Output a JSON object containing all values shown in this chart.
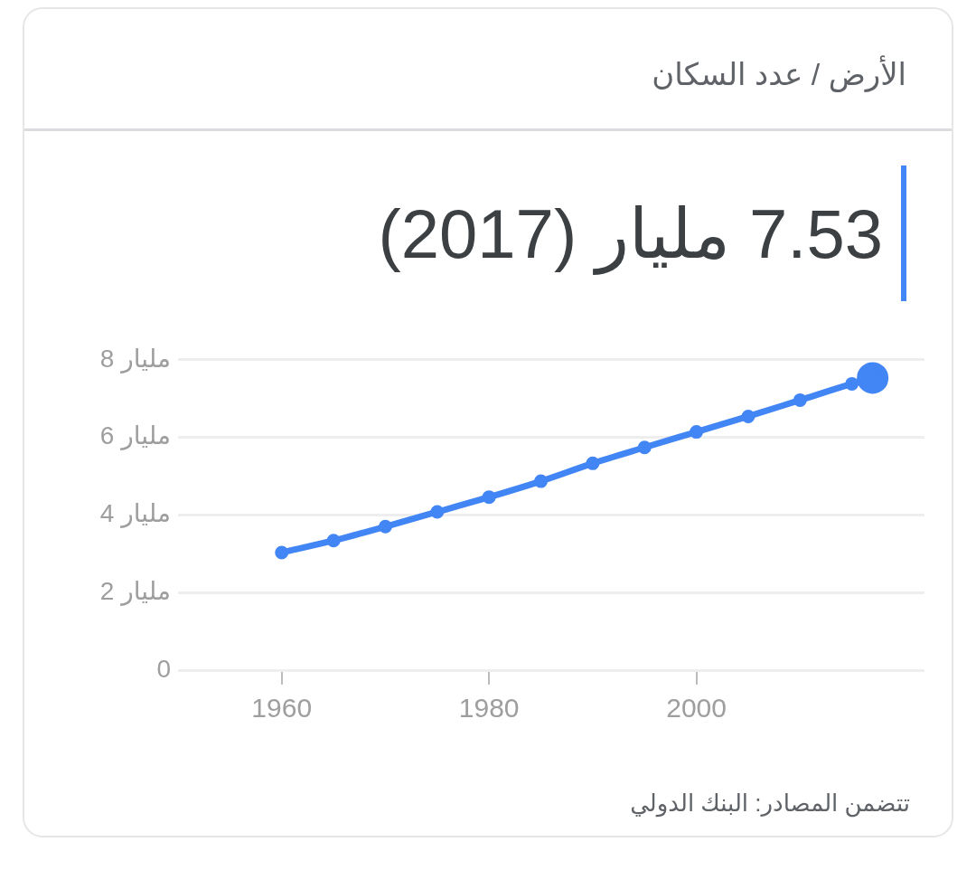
{
  "chart_data": {
    "type": "line",
    "subtitle": "الأرض / عدد السكان",
    "title": "7.53 مليار (2017)",
    "x": [
      1960,
      1965,
      1970,
      1975,
      1980,
      1985,
      1990,
      1995,
      2000,
      2005,
      2010,
      2015,
      2017
    ],
    "series": [
      {
        "color": "#4285f4",
        "values": [
          3.03,
          3.34,
          3.7,
          4.08,
          4.46,
          4.87,
          5.33,
          5.74,
          6.14,
          6.54,
          6.96,
          7.38,
          7.53
        ]
      }
    ],
    "xlim": [
      1950,
      2022
    ],
    "xticks": [
      1960,
      1980,
      2000
    ],
    "ylim": [
      0,
      8
    ],
    "yticks": [
      0,
      {
        "value": 2,
        "label": "2 مليار"
      },
      {
        "value": 4,
        "label": "4 مليار"
      },
      {
        "value": 6,
        "label": "6 مليار"
      },
      {
        "value": 8,
        "label": "8 مليار"
      }
    ],
    "grid": "y",
    "legend": false,
    "marker": "circle",
    "line_style": "solid",
    "annotations": [
      "تتضمن المصادر: البنك الدولي"
    ]
  }
}
